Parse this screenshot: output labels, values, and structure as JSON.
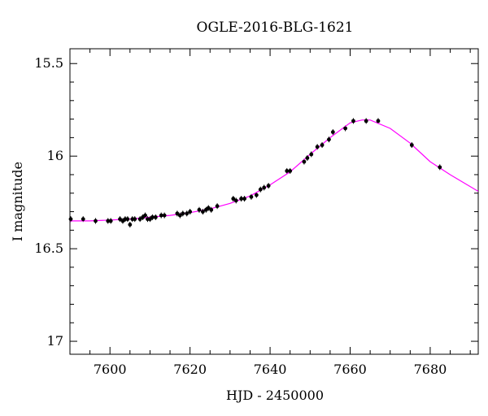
{
  "chart_data": {
    "type": "scatter",
    "title": "OGLE-2016-BLG-1621",
    "xlabel": "HJD - 2450000",
    "ylabel": "I magnitude",
    "xlim": [
      7590,
      7692
    ],
    "ylim": [
      17.07,
      15.42
    ],
    "y_inverted": true,
    "grid": false,
    "x_ticks": [
      7600,
      7620,
      7640,
      7660,
      7680
    ],
    "x_tick_labels": [
      "7600",
      "7620",
      "7640",
      "7660",
      "7680"
    ],
    "y_ticks": [
      15.5,
      16,
      16.5,
      17
    ],
    "y_tick_labels": [
      "15.5",
      "16",
      "16.5",
      "17"
    ],
    "series": [
      {
        "type": "scatter",
        "color": "#000000",
        "marker": "filled-circle-with-errorbar",
        "points": [
          [
            7590.2,
            16.34
          ],
          [
            7593.3,
            16.34
          ],
          [
            7596.4,
            16.35
          ],
          [
            7599.5,
            16.35
          ],
          [
            7600.2,
            16.35
          ],
          [
            7602.5,
            16.34
          ],
          [
            7603.2,
            16.35
          ],
          [
            7603.8,
            16.34
          ],
          [
            7604.4,
            16.34
          ],
          [
            7605.0,
            16.37
          ],
          [
            7605.6,
            16.34
          ],
          [
            7606.2,
            16.34
          ],
          [
            7607.5,
            16.34
          ],
          [
            7608.2,
            16.33
          ],
          [
            7608.8,
            16.32
          ],
          [
            7609.4,
            16.34
          ],
          [
            7610.0,
            16.34
          ],
          [
            7610.6,
            16.33
          ],
          [
            7611.4,
            16.33
          ],
          [
            7612.8,
            16.32
          ],
          [
            7613.6,
            16.32
          ],
          [
            7616.8,
            16.31
          ],
          [
            7617.5,
            16.32
          ],
          [
            7618.2,
            16.31
          ],
          [
            7619.2,
            16.31
          ],
          [
            7620.0,
            16.3
          ],
          [
            7622.3,
            16.29
          ],
          [
            7623.2,
            16.3
          ],
          [
            7624.0,
            16.29
          ],
          [
            7624.6,
            16.28
          ],
          [
            7625.3,
            16.29
          ],
          [
            7626.8,
            16.27
          ],
          [
            7630.8,
            16.23
          ],
          [
            7631.5,
            16.24
          ],
          [
            7632.8,
            16.23
          ],
          [
            7633.6,
            16.23
          ],
          [
            7635.3,
            16.22
          ],
          [
            7636.6,
            16.21
          ],
          [
            7637.6,
            16.18
          ],
          [
            7638.5,
            16.17
          ],
          [
            7639.6,
            16.16
          ],
          [
            7644.2,
            16.08
          ],
          [
            7645.0,
            16.08
          ],
          [
            7648.5,
            16.03
          ],
          [
            7649.3,
            16.01
          ],
          [
            7650.3,
            15.99
          ],
          [
            7651.8,
            15.95
          ],
          [
            7653.0,
            15.94
          ],
          [
            7654.7,
            15.91
          ],
          [
            7655.7,
            15.87
          ],
          [
            7658.8,
            15.85
          ],
          [
            7660.8,
            15.81
          ],
          [
            7664.0,
            15.81
          ],
          [
            7667.0,
            15.81
          ],
          [
            7675.4,
            15.94
          ],
          [
            7682.4,
            16.06
          ]
        ]
      },
      {
        "type": "line",
        "color": "#ff00ff",
        "x": [
          7590,
          7595,
          7600,
          7605,
          7610,
          7615,
          7620,
          7625,
          7630,
          7635,
          7640,
          7645,
          7650,
          7655,
          7660,
          7663,
          7665,
          7670,
          7675,
          7680,
          7685,
          7692
        ],
        "y": [
          16.35,
          16.35,
          16.345,
          16.34,
          16.33,
          16.32,
          16.305,
          16.285,
          16.255,
          16.215,
          16.155,
          16.085,
          15.99,
          15.9,
          15.82,
          15.805,
          15.805,
          15.85,
          15.93,
          16.03,
          16.1,
          16.19
        ]
      }
    ]
  }
}
